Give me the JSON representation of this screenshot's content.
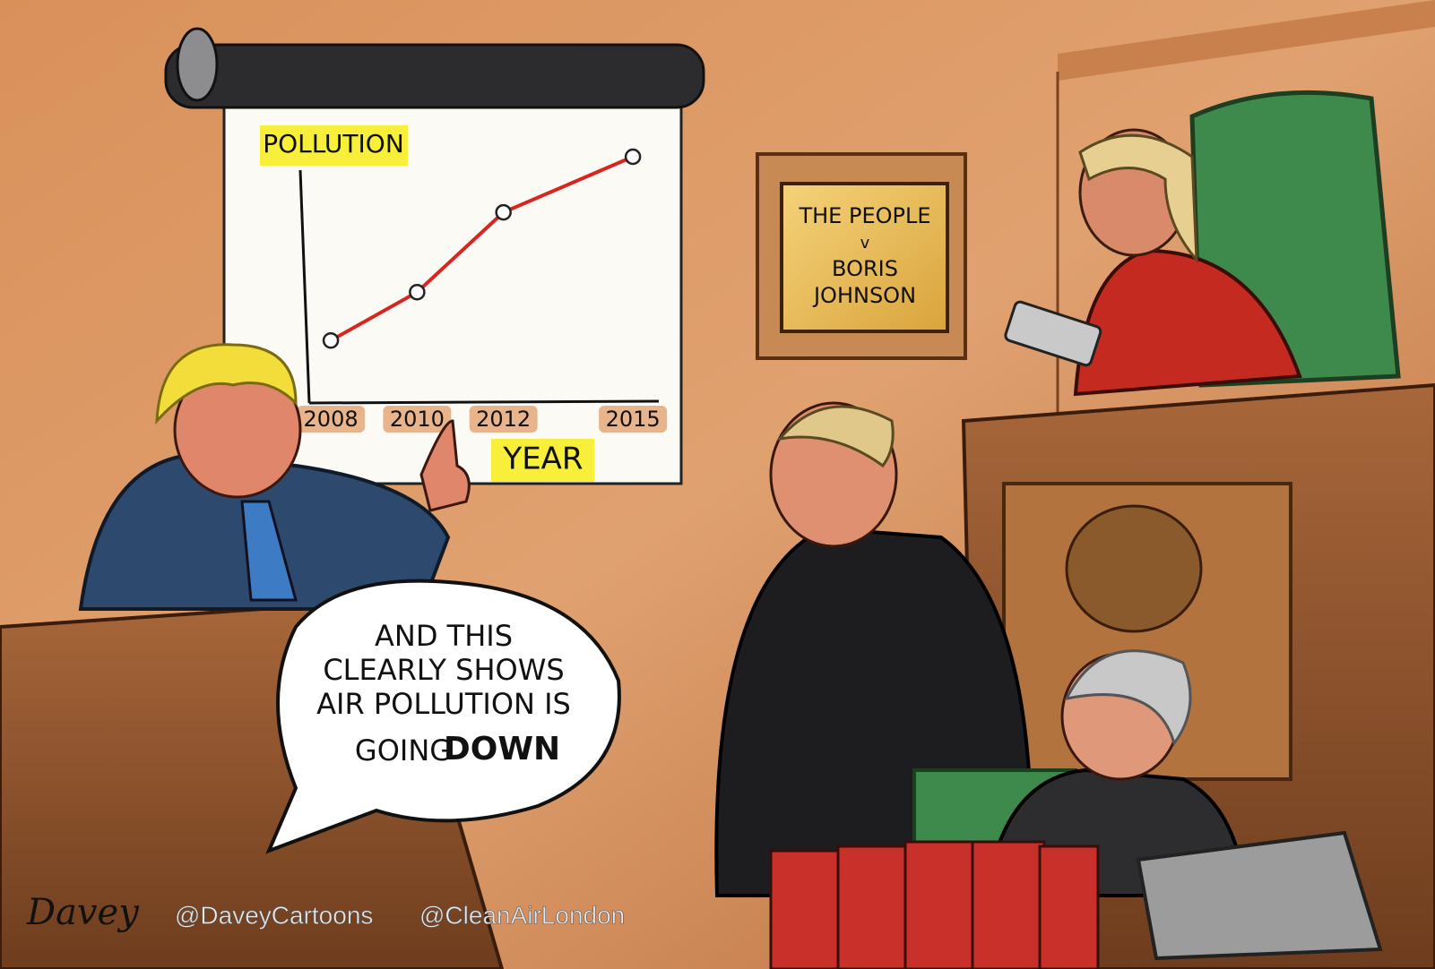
{
  "chart_data": {
    "type": "line",
    "ylabel": "POLLUTION",
    "xlabel": "YEAR",
    "x": [
      2008,
      2010,
      2012,
      2015
    ],
    "values": [
      24,
      44,
      77,
      100
    ],
    "color": "#d8261e",
    "xlim": [
      2007.5,
      2015.6
    ],
    "xticks": [
      2008,
      2010,
      2012,
      2015
    ],
    "ylim": [
      0,
      100
    ]
  },
  "sign": {
    "lines": [
      "THE PEOPLE",
      "v",
      "BORIS",
      "JOHNSON"
    ]
  },
  "speech_bubble": {
    "lines": [
      "AND THIS",
      "CLEARLY SHOWS",
      "AIR POLLUTION IS"
    ],
    "last": "GOING",
    "emphasis": "DOWN"
  },
  "signature": "Davey",
  "credits": [
    "@DaveyCartoons",
    "@CleanAirLondon"
  ]
}
